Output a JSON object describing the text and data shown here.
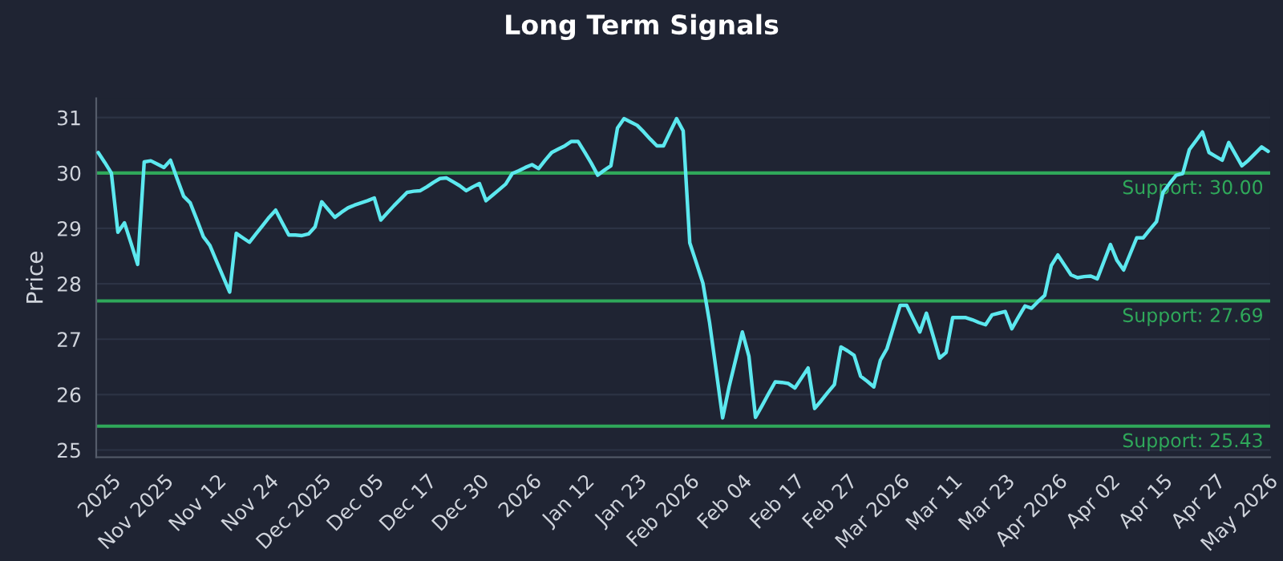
{
  "chart_data": {
    "type": "line",
    "title": "Long Term Signals",
    "ylabel": "Price",
    "categories": [
      null,
      null,
      "2025",
      null,
      null,
      null,
      null,
      null,
      null,
      null,
      "Nov 2025",
      null,
      null,
      null,
      null,
      null,
      null,
      null,
      "Nov 12",
      null,
      null,
      null,
      null,
      null,
      null,
      null,
      "Nov 24",
      null,
      null,
      null,
      null,
      null,
      null,
      null,
      "Dec 2025",
      null,
      null,
      null,
      null,
      null,
      null,
      null,
      "Dec 05",
      null,
      null,
      null,
      null,
      null,
      null,
      null,
      "Dec 17",
      null,
      null,
      null,
      null,
      null,
      null,
      null,
      "Dec 30",
      null,
      null,
      null,
      null,
      null,
      null,
      null,
      "2026",
      null,
      null,
      null,
      null,
      null,
      null,
      null,
      "Jan 12",
      null,
      null,
      null,
      null,
      null,
      null,
      null,
      "Jan 23",
      null,
      null,
      null,
      null,
      null,
      null,
      null,
      "Feb 2026",
      null,
      null,
      null,
      null,
      null,
      null,
      null,
      "Feb 04",
      null,
      null,
      null,
      null,
      null,
      null,
      null,
      "Feb 17",
      null,
      null,
      null,
      null,
      null,
      null,
      null,
      "Feb 27",
      null,
      null,
      null,
      null,
      null,
      null,
      null,
      "Mar 2026",
      null,
      null,
      null,
      null,
      null,
      null,
      null,
      "Mar 11",
      null,
      null,
      null,
      null,
      null,
      null,
      null,
      "Mar 23",
      null,
      null,
      null,
      null,
      null,
      null,
      null,
      "Apr 2026",
      null,
      null,
      null,
      null,
      null,
      null,
      null,
      "Apr 02",
      null,
      null,
      null,
      null,
      null,
      null,
      null,
      "Apr 15",
      null,
      null,
      null,
      null,
      null,
      null,
      null,
      "Apr 27",
      null,
      null,
      null,
      null,
      null,
      null,
      null,
      "May 2026"
    ],
    "series": [
      {
        "color": "#5ce8ef",
        "values": [
          30.37,
          30.19,
          30.0,
          28.93,
          29.1,
          28.73,
          28.35,
          30.2,
          30.22,
          30.16,
          30.1,
          30.23,
          29.9,
          29.58,
          29.46,
          29.16,
          28.85,
          28.69,
          28.41,
          28.13,
          27.85,
          28.91,
          28.83,
          28.75,
          28.9,
          29.05,
          29.2,
          29.33,
          29.1,
          28.88,
          28.88,
          28.87,
          28.9,
          29.03,
          29.48,
          29.34,
          29.2,
          29.29,
          29.37,
          29.42,
          29.46,
          29.5,
          29.55,
          29.15,
          29.28,
          29.41,
          29.53,
          29.65,
          29.67,
          29.68,
          29.75,
          29.83,
          29.9,
          29.91,
          29.84,
          29.77,
          29.68,
          29.75,
          29.81,
          29.5,
          29.6,
          29.7,
          29.8,
          29.99,
          30.04,
          30.1,
          30.15,
          30.08,
          30.23,
          30.37,
          30.43,
          30.49,
          30.57,
          30.57,
          30.38,
          30.18,
          29.96,
          30.05,
          30.13,
          30.81,
          30.98,
          30.92,
          30.86,
          30.74,
          30.61,
          30.49,
          30.49,
          30.74,
          30.98,
          30.76,
          28.74,
          28.38,
          28.01,
          27.31,
          26.45,
          25.58,
          26.15,
          26.64,
          27.13,
          26.69,
          25.59,
          25.8,
          26.02,
          26.23,
          26.22,
          26.2,
          26.12,
          26.3,
          26.48,
          25.75,
          25.89,
          26.04,
          26.18,
          26.86,
          26.79,
          26.71,
          26.33,
          26.24,
          26.14,
          26.62,
          26.83,
          27.22,
          27.61,
          27.61,
          27.37,
          27.13,
          27.47,
          27.07,
          26.66,
          26.76,
          27.39,
          27.39,
          27.39,
          27.35,
          27.3,
          27.26,
          27.44,
          27.47,
          27.5,
          27.19,
          27.4,
          27.6,
          27.56,
          27.68,
          27.79,
          28.33,
          28.52,
          28.34,
          28.16,
          28.11,
          28.13,
          28.14,
          28.09,
          28.4,
          28.71,
          28.42,
          28.25,
          28.54,
          28.83,
          28.83,
          28.98,
          29.12,
          29.65,
          29.81,
          29.96,
          29.99,
          30.42,
          30.58,
          30.74,
          30.37,
          30.3,
          30.23,
          30.55,
          30.34,
          30.13,
          30.23,
          30.35,
          30.47,
          30.39
        ]
      }
    ],
    "ylim": [
      24.87,
      31.35
    ],
    "yticks": [
      25,
      26,
      27,
      28,
      29,
      30,
      31
    ],
    "grid": "y",
    "ref_lines": [
      {
        "axis": "y",
        "value": 30.0,
        "label": "Support: 30.00",
        "color": "#2fa85a"
      },
      {
        "axis": "y",
        "value": 27.69,
        "label": "Support: 27.69",
        "color": "#2fa85a"
      },
      {
        "axis": "y",
        "value": 25.43,
        "label": "Support: 25.43",
        "color": "#2fa85a"
      }
    ]
  }
}
